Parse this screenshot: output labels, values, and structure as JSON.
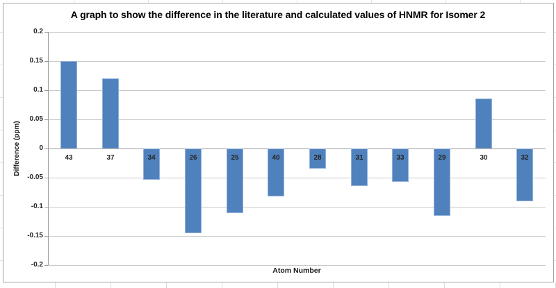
{
  "chart_data": {
    "type": "bar",
    "title": "A graph to show the difference in the literature and calculated values of HNMR for Isomer 2",
    "xlabel": "Atom Number",
    "ylabel": "Difference (ppm)",
    "categories": [
      "43",
      "37",
      "34",
      "26",
      "25",
      "40",
      "28",
      "31",
      "33",
      "29",
      "30",
      "32"
    ],
    "values": [
      0.15,
      0.12,
      -0.054,
      -0.145,
      -0.111,
      -0.082,
      -0.035,
      -0.064,
      -0.057,
      -0.115,
      0.086,
      -0.09
    ],
    "ylim": [
      -0.2,
      0.2
    ],
    "yticks": [
      0.2,
      0.15,
      0.1,
      0.05,
      0,
      -0.05,
      -0.1,
      -0.15,
      -0.2
    ],
    "ytick_labels": [
      "0.2",
      "0.15",
      "0.1",
      "0.05",
      "0",
      "-0.05",
      "-0.1",
      "-0.15",
      "-0.2"
    ],
    "grid": true,
    "legend_position": "none",
    "bar_color": "#4f81bd",
    "bar_border_color": "#93b1d7",
    "gridline_color": "#c9c9c9",
    "axis_color": "#9a9a9a",
    "frame_border_color": "#a3a3a3"
  }
}
